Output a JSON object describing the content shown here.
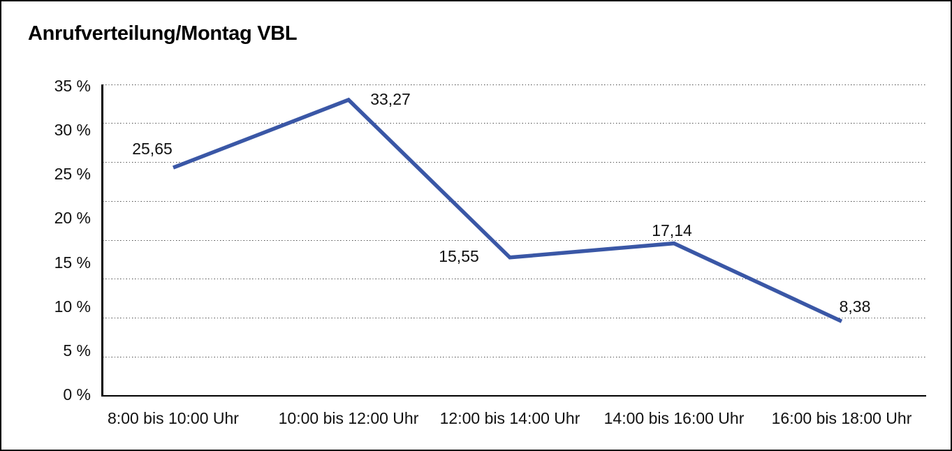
{
  "page": {
    "title": "Anrufverteilung/Montag VBL"
  },
  "chart_data": {
    "type": "line",
    "title": "Anrufverteilung/Montag VBL",
    "categories": [
      "8:00 bis 10:00 Uhr",
      "10:00 bis 12:00 Uhr",
      "12:00 bis 14:00 Uhr",
      "14:00 bis 16:00 Uhr",
      "16:00 bis 18:00 Uhr"
    ],
    "series": [
      {
        "name": "",
        "values": [
          25.65,
          33.27,
          15.55,
          17.14,
          8.38
        ],
        "value_labels": [
          "25,65",
          "33,27",
          "15,55",
          "17,14",
          "8,38"
        ]
      }
    ],
    "xlabel": "",
    "ylabel": "",
    "y_tick_labels": [
      "35 %",
      "30 %",
      "25 %",
      "20 %",
      "15 %",
      "10 %",
      "5 %",
      "0 %"
    ],
    "ylim": [
      0,
      35
    ],
    "grid": "horizontal-dotted",
    "grid_intervals": 8,
    "legend": "none",
    "line_color": "#3A57A6",
    "axis_color": "#000000",
    "text_color": "#111111"
  }
}
